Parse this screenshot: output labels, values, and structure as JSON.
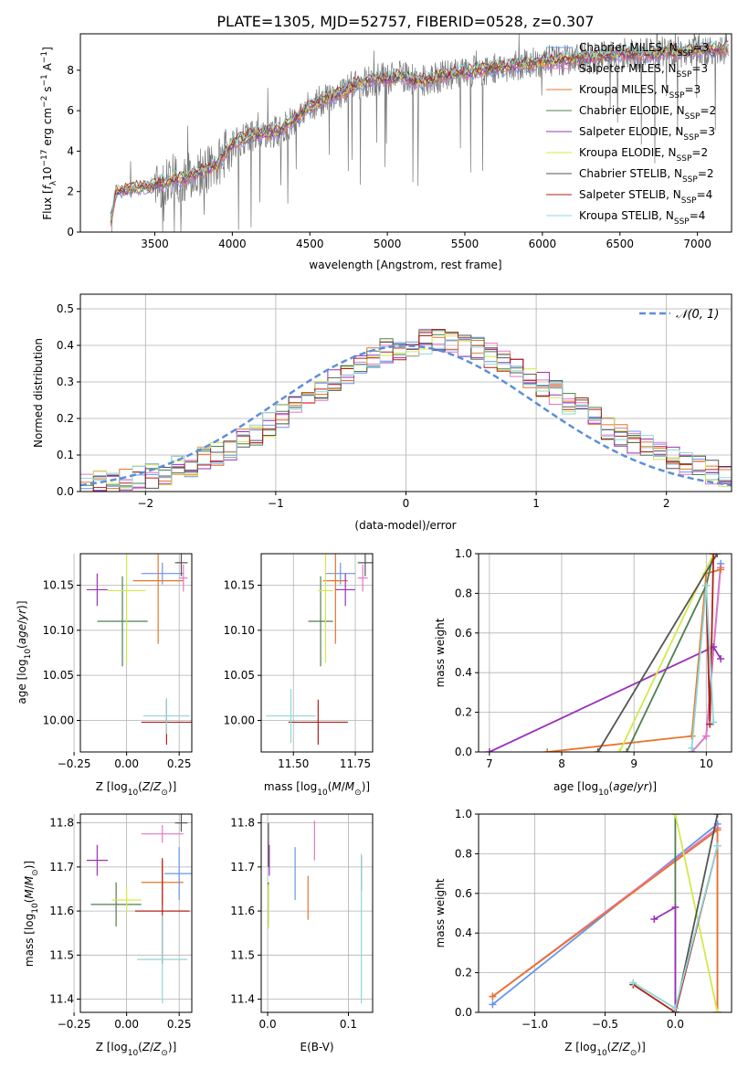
{
  "figure": {
    "title": "PLATE=1305, MJD=52757, FIBERID=0528, z=0.307"
  },
  "colors": {
    "Chabrier MILES": "#6495ed",
    "Salpeter MILES": "#e377c2",
    "Kroupa MILES": "#e8742a",
    "Chabrier ELODIE": "#4f7f4f",
    "Salpeter ELODIE": "#9b30b8",
    "Kroupa ELODIE": "#d4e84a",
    "Chabrier STELIB": "#555555",
    "Salpeter STELIB": "#b0201a",
    "Kroupa STELIB": "#8fd7d7",
    "normal": "#5b8fd9"
  },
  "chart_data": [
    {
      "id": "spectrum",
      "type": "line",
      "title": "PLATE=1305, MJD=52757, FIBERID=0528, z=0.307",
      "xlabel": "wavelength [Angstrom, rest frame]",
      "ylabel": "Flux [f_λ 10^-17 erg cm^-2 s^-1 A^-1]",
      "xlim": [
        3020,
        7220
      ],
      "ylim": [
        0,
        9.8
      ],
      "xticks": [
        3500,
        4000,
        4500,
        5000,
        5500,
        6000,
        6500,
        7000
      ],
      "yticks": [
        0,
        2,
        4,
        6,
        8
      ],
      "legend_position": "upper right",
      "legend": [
        {
          "label": "Chabrier MILES, N_SSP=3",
          "lib": "Chabrier MILES"
        },
        {
          "label": "Salpeter MILES, N_SSP=3",
          "lib": "Salpeter MILES"
        },
        {
          "label": "Kroupa MILES, N_SSP=3",
          "lib": "Kroupa MILES"
        },
        {
          "label": "Chabrier ELODIE, N_SSP=2",
          "lib": "Chabrier ELODIE"
        },
        {
          "label": "Salpeter ELODIE, N_SSP=3",
          "lib": "Salpeter ELODIE"
        },
        {
          "label": "Kroupa ELODIE, N_SSP=2",
          "lib": "Kroupa ELODIE"
        },
        {
          "label": "Chabrier STELIB, N_SSP=2",
          "lib": "Chabrier STELIB"
        },
        {
          "label": "Salpeter STELIB, N_SSP=4",
          "lib": "Salpeter STELIB"
        },
        {
          "label": "Kroupa STELIB, N_SSP=4",
          "lib": "Kroupa STELIB"
        }
      ],
      "model_continuum": {
        "x": [
          3200,
          3250,
          3300,
          3400,
          3500,
          3600,
          3700,
          3800,
          3900,
          4000,
          4100,
          4200,
          4300,
          4400,
          4500,
          4600,
          4700,
          4800,
          4900,
          5000,
          5100,
          5200,
          5300,
          5400,
          5500,
          5600,
          5700,
          5800,
          5900,
          6000,
          6100,
          6200,
          6300,
          6400,
          6500,
          6600,
          6700,
          6800,
          6900,
          7000,
          7100,
          7200
        ],
        "y": [
          0.0,
          2.0,
          2.1,
          2.2,
          2.3,
          2.6,
          2.7,
          3.0,
          3.3,
          4.4,
          4.7,
          4.9,
          5.0,
          5.6,
          6.2,
          6.6,
          6.9,
          7.3,
          7.5,
          7.6,
          7.7,
          7.4,
          7.6,
          7.8,
          7.9,
          8.0,
          8.1,
          8.2,
          8.3,
          8.4,
          8.5,
          8.6,
          8.6,
          8.7,
          8.8,
          8.8,
          8.8,
          8.9,
          8.9,
          9.0,
          9.0,
          9.1
        ]
      },
      "observed_note": "data shown as noisy grey line"
    },
    {
      "id": "residuals",
      "type": "line",
      "xlabel": "(data-model)/error",
      "ylabel": "Normed distribution",
      "xlim": [
        -2.5,
        2.5
      ],
      "ylim": [
        0,
        0.54
      ],
      "xticks": [
        -2,
        -1,
        0,
        1,
        2
      ],
      "yticks": [
        0.0,
        0.1,
        0.2,
        0.3,
        0.4,
        0.5
      ],
      "legend": [
        {
          "label": "𝒩(0, 1)",
          "style": "dashed"
        }
      ],
      "legend_position": "upper right",
      "bin_width": 0.1,
      "base_hist": [
        0.018,
        0.022,
        0.025,
        0.03,
        0.036,
        0.043,
        0.052,
        0.062,
        0.074,
        0.088,
        0.104,
        0.121,
        0.14,
        0.161,
        0.184,
        0.208,
        0.232,
        0.258,
        0.283,
        0.307,
        0.33,
        0.352,
        0.37,
        0.384,
        0.395,
        0.403,
        0.41,
        0.418,
        0.41,
        0.4,
        0.388,
        0.374,
        0.358,
        0.339,
        0.318,
        0.295,
        0.271,
        0.247,
        0.222,
        0.198,
        0.176,
        0.156,
        0.137,
        0.12,
        0.104,
        0.09,
        0.077,
        0.065,
        0.055,
        0.046
      ]
    },
    {
      "id": "age-vs-z",
      "type": "scatter",
      "xlabel": "Z [log10(Z/Z⊙)]",
      "ylabel": "age  [log10(age/yr)]",
      "xlim": [
        -0.22,
        0.31
      ],
      "ylim": [
        9.965,
        10.185
      ],
      "xticks": [
        -0.25,
        0.0,
        0.25
      ],
      "yticks": [
        10.0,
        10.05,
        10.1,
        10.15
      ],
      "points": [
        {
          "lib": "Chabrier MILES",
          "x": 0.17,
          "y": 10.163,
          "xerr": 0.1,
          "yerr": 0.012
        },
        {
          "lib": "Salpeter MILES",
          "x": 0.27,
          "y": 10.158,
          "xerr": 0.02,
          "yerr": 0.015
        },
        {
          "lib": "Kroupa MILES",
          "x": 0.15,
          "y": 10.155,
          "xerr": 0.12,
          "yerr": 0.07
        },
        {
          "lib": "Chabrier ELODIE",
          "x": -0.02,
          "y": 10.11,
          "xerr": 0.12,
          "yerr": 0.05
        },
        {
          "lib": "Salpeter ELODIE",
          "x": -0.14,
          "y": 10.145,
          "xerr": 0.05,
          "yerr": 0.018
        },
        {
          "lib": "Kroupa ELODIE",
          "x": 0.0,
          "y": 10.144,
          "xerr": 0.09,
          "yerr": 0.08
        },
        {
          "lib": "Chabrier STELIB",
          "x": 0.26,
          "y": 10.175,
          "xerr": 0.03,
          "yerr": 0.015
        },
        {
          "lib": "Salpeter STELIB",
          "x": 0.19,
          "y": 9.998,
          "xerr": 0.12,
          "yerr": 0.025
        },
        {
          "lib": "Kroupa STELIB",
          "x": 0.19,
          "y": 10.005,
          "xerr": 0.11,
          "yerr": 0.02
        }
      ]
    },
    {
      "id": "age-vs-mass",
      "type": "scatter",
      "xlabel": "mass [log10(M/M⊙)]",
      "ylabel": "",
      "xlim": [
        11.37,
        11.82
      ],
      "ylim": [
        9.965,
        10.185
      ],
      "xticks": [
        11.5,
        11.75
      ],
      "yticks": [
        10.0,
        10.05,
        10.1,
        10.15
      ],
      "points": [
        {
          "lib": "Chabrier MILES",
          "x": 11.69,
          "y": 10.163,
          "xerr": 0.06,
          "yerr": 0.012
        },
        {
          "lib": "Salpeter MILES",
          "x": 11.78,
          "y": 10.158,
          "xerr": 0.02,
          "yerr": 0.015
        },
        {
          "lib": "Kroupa MILES",
          "x": 11.67,
          "y": 10.155,
          "xerr": 0.05,
          "yerr": 0.07
        },
        {
          "lib": "Chabrier ELODIE",
          "x": 11.61,
          "y": 10.11,
          "xerr": 0.05,
          "yerr": 0.05
        },
        {
          "lib": "Salpeter ELODIE",
          "x": 11.71,
          "y": 10.145,
          "xerr": 0.04,
          "yerr": 0.018
        },
        {
          "lib": "Kroupa ELODIE",
          "x": 11.63,
          "y": 10.144,
          "xerr": 0.03,
          "yerr": 0.08
        },
        {
          "lib": "Chabrier STELIB",
          "x": 11.79,
          "y": 10.175,
          "xerr": 0.03,
          "yerr": 0.015
        },
        {
          "lib": "Salpeter STELIB",
          "x": 11.6,
          "y": 9.998,
          "xerr": 0.12,
          "yerr": 0.025
        },
        {
          "lib": "Kroupa STELIB",
          "x": 11.49,
          "y": 10.005,
          "xerr": 0.1,
          "yerr": 0.03
        }
      ]
    },
    {
      "id": "weight-vs-age",
      "type": "line",
      "xlabel": "age  [log10(age/yr)]",
      "ylabel": "mass weight",
      "xlim": [
        6.85,
        10.35
      ],
      "ylim": [
        0,
        1
      ],
      "xticks": [
        7,
        8,
        9,
        10
      ],
      "yticks": [
        0.0,
        0.2,
        0.4,
        0.6,
        0.8,
        1.0
      ],
      "series": [
        {
          "lib": "Chabrier MILES",
          "x": [
            9.8,
            10.0,
            10.2
          ],
          "y": [
            0.0,
            0.08,
            0.95
          ]
        },
        {
          "lib": "Salpeter MILES",
          "x": [
            9.8,
            10.0,
            10.2
          ],
          "y": [
            0.0,
            0.08,
            0.93
          ]
        },
        {
          "lib": "Kroupa MILES",
          "x": [
            7.8,
            9.8,
            10.0,
            10.2
          ],
          "y": [
            0.0,
            0.08,
            0.9,
            0.92
          ]
        },
        {
          "lib": "Chabrier ELODIE",
          "x": [
            8.9,
            10.0,
            10.1
          ],
          "y": [
            0.0,
            0.84,
            1.0
          ]
        },
        {
          "lib": "Salpeter ELODIE",
          "x": [
            7.0,
            10.1,
            10.2
          ],
          "y": [
            0.0,
            0.53,
            0.47
          ]
        },
        {
          "lib": "Kroupa ELODIE",
          "x": [
            8.8,
            10.1
          ],
          "y": [
            0.0,
            1.0
          ]
        },
        {
          "lib": "Chabrier STELIB",
          "x": [
            8.5,
            10.15
          ],
          "y": [
            0.0,
            1.0
          ]
        },
        {
          "lib": "Salpeter STELIB",
          "x": [
            10.0,
            10.05,
            10.1
          ],
          "y": [
            0.84,
            0.14,
            1.0
          ]
        },
        {
          "lib": "Kroupa STELIB",
          "x": [
            9.8,
            10.0,
            10.1
          ],
          "y": [
            0.02,
            0.84,
            0.15
          ]
        }
      ]
    },
    {
      "id": "mass-vs-z",
      "type": "scatter",
      "xlabel": "Z [log10(Z/Z⊙)]",
      "ylabel": "mass [log10(M/M⊙)]",
      "xlim": [
        -0.22,
        0.31
      ],
      "ylim": [
        11.37,
        11.82
      ],
      "xticks": [
        -0.25,
        0.0,
        0.25
      ],
      "yticks": [
        11.4,
        11.5,
        11.6,
        11.7,
        11.8
      ],
      "points": [
        {
          "lib": "Chabrier MILES",
          "x": 0.25,
          "y": 11.685,
          "xerr": 0.07,
          "yerr": 0.06
        },
        {
          "lib": "Salpeter MILES",
          "x": 0.17,
          "y": 11.775,
          "xerr": 0.1,
          "yerr": 0.02
        },
        {
          "lib": "Kroupa MILES",
          "x": 0.17,
          "y": 11.665,
          "xerr": 0.1,
          "yerr": 0.05
        },
        {
          "lib": "Chabrier ELODIE",
          "x": -0.05,
          "y": 11.615,
          "xerr": 0.12,
          "yerr": 0.05
        },
        {
          "lib": "Salpeter ELODIE",
          "x": -0.14,
          "y": 11.715,
          "xerr": 0.05,
          "yerr": 0.035
        },
        {
          "lib": "Kroupa ELODIE",
          "x": 0.0,
          "y": 11.625,
          "xerr": 0.07,
          "yerr": 0.03
        },
        {
          "lib": "Chabrier STELIB",
          "x": 0.26,
          "y": 11.8,
          "xerr": 0.03,
          "yerr": 0.02
        },
        {
          "lib": "Salpeter STELIB",
          "x": 0.17,
          "y": 11.6,
          "xerr": 0.13,
          "yerr": 0.12
        },
        {
          "lib": "Kroupa STELIB",
          "x": 0.17,
          "y": 11.49,
          "xerr": 0.12,
          "yerr": 0.1
        }
      ]
    },
    {
      "id": "mass-vs-ebv",
      "type": "scatter",
      "xlabel": "E(B-V)",
      "ylabel": "",
      "xlim": [
        -0.008,
        0.13
      ],
      "ylim": [
        11.37,
        11.82
      ],
      "xticks": [
        0.0,
        0.1
      ],
      "yticks": [
        11.4,
        11.5,
        11.6,
        11.7,
        11.8
      ],
      "points": [
        {
          "lib": "Chabrier MILES",
          "x": 0.034,
          "y": 11.685,
          "xerr": 0.0,
          "yerr": 0.06
        },
        {
          "lib": "Salpeter MILES",
          "x": 0.058,
          "y": 11.76,
          "xerr": 0.0,
          "yerr": 0.045
        },
        {
          "lib": "Kroupa MILES",
          "x": 0.05,
          "y": 11.63,
          "xerr": 0.0,
          "yerr": 0.05
        },
        {
          "lib": "Chabrier ELODIE",
          "x": 0.001,
          "y": 11.615,
          "xerr": 0.0,
          "yerr": 0.05
        },
        {
          "lib": "Salpeter ELODIE",
          "x": 0.002,
          "y": 11.715,
          "xerr": 0.0,
          "yerr": 0.035
        },
        {
          "lib": "Kroupa ELODIE",
          "x": 0.001,
          "y": 11.61,
          "xerr": 0.0,
          "yerr": 0.05
        },
        {
          "lib": "Chabrier STELIB",
          "x": 0.001,
          "y": 11.75,
          "xerr": 0.0,
          "yerr": 0.05
        },
        {
          "lib": "Salpeter STELIB",
          "x": 0.116,
          "y": 11.685,
          "xerr": 0.0,
          "yerr": 0.04
        },
        {
          "lib": "Kroupa STELIB",
          "x": 0.116,
          "y": 11.56,
          "xerr": 0.0,
          "yerr": 0.17
        }
      ]
    },
    {
      "id": "weight-vs-z",
      "type": "line",
      "xlabel": "Z [log10(Z/Z⊙)]",
      "ylabel": "mass weight",
      "xlim": [
        -1.4,
        0.4
      ],
      "ylim": [
        0,
        1
      ],
      "xticks": [
        -1.0,
        -0.5,
        0.0
      ],
      "yticks": [
        0.0,
        0.2,
        0.4,
        0.6,
        0.8,
        1.0
      ],
      "series": [
        {
          "lib": "Chabrier MILES",
          "x": [
            -1.3,
            0.3,
            0.3
          ],
          "y": [
            0.04,
            0.95,
            0.0
          ]
        },
        {
          "lib": "Salpeter MILES",
          "x": [
            -1.3,
            0.3,
            0.3
          ],
          "y": [
            0.08,
            0.93,
            0.0
          ]
        },
        {
          "lib": "Kroupa MILES",
          "x": [
            -1.3,
            0.3,
            0.3
          ],
          "y": [
            0.08,
            0.92,
            0.0
          ]
        },
        {
          "lib": "Chabrier ELODIE",
          "x": [
            0.0,
            0.0
          ],
          "y": [
            0.0,
            1.0
          ]
        },
        {
          "lib": "Salpeter ELODIE",
          "x": [
            -0.15,
            0.0,
            0.0
          ],
          "y": [
            0.47,
            0.53,
            0.0
          ]
        },
        {
          "lib": "Kroupa ELODIE",
          "x": [
            0.0,
            0.3
          ],
          "y": [
            1.0,
            0.0
          ]
        },
        {
          "lib": "Chabrier STELIB",
          "x": [
            0.0,
            0.3
          ],
          "y": [
            0.0,
            1.0
          ]
        },
        {
          "lib": "Salpeter STELIB",
          "x": [
            -0.3,
            0.0,
            0.3
          ],
          "y": [
            0.14,
            0.0,
            0.84
          ]
        },
        {
          "lib": "Kroupa STELIB",
          "x": [
            -0.3,
            0.0,
            0.3
          ],
          "y": [
            0.15,
            0.02,
            0.84
          ]
        }
      ]
    }
  ]
}
